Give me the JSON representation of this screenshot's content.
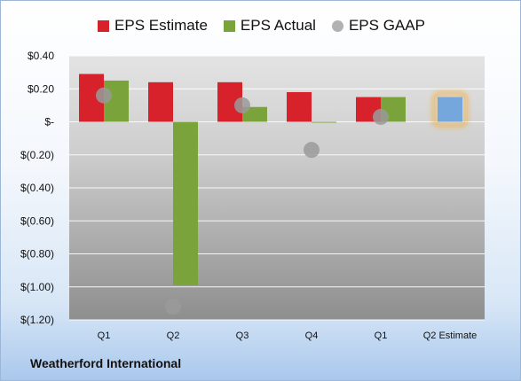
{
  "company": "Weatherford International",
  "colors": {
    "estimate": "#d8222b",
    "actual": "#7aa43b",
    "gaap": "#b2b2b2",
    "future_estimate": "#75a7dc",
    "future_glow": "#f5a623"
  },
  "chart_data": {
    "type": "bar",
    "categories": [
      "Q1",
      "Q2",
      "Q3",
      "Q4",
      "Q1",
      "Q2 Estimate"
    ],
    "series": [
      {
        "name": "EPS Estimate",
        "values": [
          0.29,
          0.24,
          0.24,
          0.18,
          0.15,
          null
        ]
      },
      {
        "name": "EPS Actual",
        "values": [
          0.25,
          -0.99,
          0.09,
          0.0,
          0.15,
          0.15
        ]
      },
      {
        "name": "EPS GAAP",
        "values": [
          0.16,
          -1.12,
          0.1,
          -0.17,
          0.03,
          null
        ]
      }
    ],
    "ylim": [
      -1.2,
      0.4
    ],
    "yticks": [
      0.4,
      0.2,
      0.0,
      -0.2,
      -0.4,
      -0.6,
      -0.8,
      -1.0,
      -1.2
    ],
    "ytick_labels": [
      "$0.40",
      "$0.20",
      "$-",
      "$(0.20)",
      "$(0.40)",
      "$(0.60)",
      "$(0.80)",
      "$(1.00)",
      "$(1.20)"
    ],
    "grid": true,
    "legend": "top"
  }
}
